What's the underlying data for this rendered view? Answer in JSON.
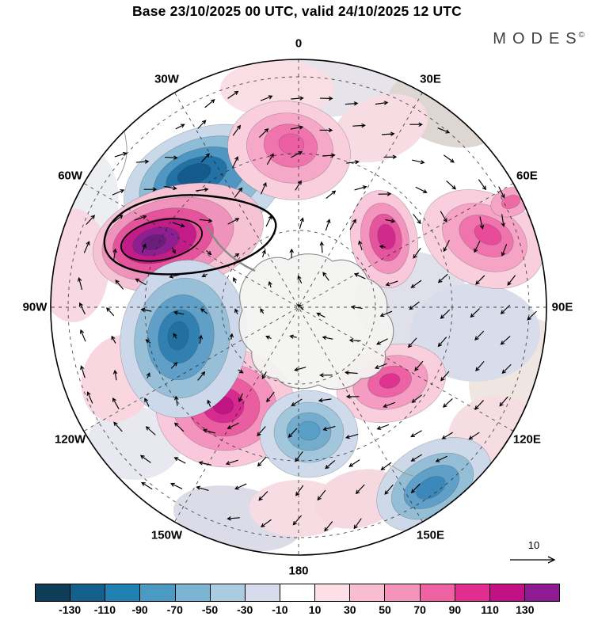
{
  "title": "Base 23/10/2025 00 UTC, valid 24/10/2025 12 UTC",
  "logo": {
    "text": "MODES",
    "mark": "©"
  },
  "map": {
    "longitude_labels": [
      "0",
      "30E",
      "60E",
      "90E",
      "120E",
      "150E",
      "180",
      "150W",
      "120W",
      "90W",
      "60W",
      "30W"
    ],
    "reference_arrow_label": "10"
  },
  "colorbar": {
    "tick_labels": [
      "-130",
      "-110",
      "-90",
      "-70",
      "-50",
      "-30",
      "-10",
      "10",
      "30",
      "50",
      "70",
      "90",
      "110",
      "130"
    ],
    "colors": [
      "#0d3d57",
      "#14608c",
      "#2180b2",
      "#4a9ac4",
      "#7cb5d4",
      "#abcce0",
      "#d6dcec",
      "#ffffff",
      "#fcdfe7",
      "#f9bdd1",
      "#f493bb",
      "#ee62a3",
      "#df2e90",
      "#c11184",
      "#8e1b92"
    ]
  },
  "chart_data": {
    "type": "heatmap",
    "title": "Base 23/10/2025 00 UTC, valid 24/10/2025 12 UTC",
    "projection": "Southern-hemisphere polar view, 0 longitude at top, 180 at bottom, east longitudes on the right",
    "field": "Filled anomaly contours with overlaid wind/flow vector arrows and dashed lat-lon graticule; Antarctica coastline at center",
    "contour_levels": [
      -130,
      -110,
      -90,
      -70,
      -50,
      -30,
      -10,
      10,
      30,
      50,
      70,
      90,
      110,
      130
    ],
    "contour_interval": 20,
    "palette": [
      "#0d3d57",
      "#14608c",
      "#2180b2",
      "#4a9ac4",
      "#7cb5d4",
      "#abcce0",
      "#d6dcec",
      "#ffffff",
      "#fcdfe7",
      "#f9bdd1",
      "#f493bb",
      "#ee62a3",
      "#df2e90",
      "#c11184",
      "#8e1b92"
    ],
    "colorbar_orientation": "horizontal, bottom",
    "vector_reference_value": 10,
    "longitude_ring_labels": [
      "0",
      "30E",
      "60E",
      "90E",
      "120E",
      "150E",
      "180",
      "150W",
      "120W",
      "90W",
      "60W",
      "30W"
    ],
    "anomaly_centers_estimated": [
      {
        "approx_position": "upper left, ~40W mid-latitudes",
        "value": -115
      },
      {
        "approx_position": "left, ~70W (heavy black contour outline)",
        "value": 140
      },
      {
        "approx_position": "top center, near 0",
        "value": 80
      },
      {
        "approx_position": "right, ~65E",
        "value": 90
      },
      {
        "approx_position": "inner right of pole, ~40E",
        "value": 110
      },
      {
        "approx_position": "lower left, ~140W",
        "value": 115
      },
      {
        "approx_position": "inner lower right of pole, ~120E",
        "value": 100
      },
      {
        "approx_position": "left of pole, ~100W",
        "value": -85
      },
      {
        "approx_position": "lower right, ~150E",
        "value": -75
      },
      {
        "approx_position": "bottom center, ~180",
        "value": -55
      }
    ]
  }
}
